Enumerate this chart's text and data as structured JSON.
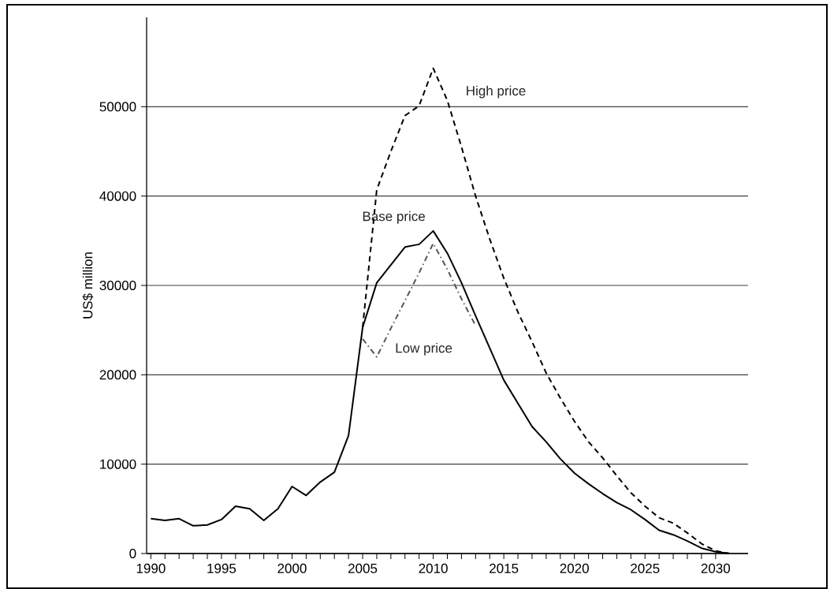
{
  "chart_data": {
    "type": "line",
    "ylabel": "US$ million",
    "xlim": [
      1989.7,
      2032.3
    ],
    "xticks": [
      1990,
      1995,
      2000,
      2005,
      2010,
      2015,
      2020,
      2025,
      2030
    ],
    "ylim": [
      0,
      60000
    ],
    "yticks": [
      0,
      10000,
      20000,
      30000,
      40000,
      50000
    ],
    "grid": "y",
    "legend": false,
    "marker": "none",
    "series": [
      {
        "name": "Base price",
        "color": "#000000",
        "line_style": "solid",
        "x": [
          1990,
          1991,
          1992,
          1993,
          1994,
          1995,
          1996,
          1997,
          1998,
          1999,
          2000,
          2001,
          2002,
          2003,
          2004,
          2005,
          2006,
          2007,
          2008,
          2009,
          2010,
          2011,
          2012,
          2013,
          2014,
          2015,
          2016,
          2017,
          2018,
          2019,
          2020,
          2021,
          2022,
          2023,
          2024,
          2025,
          2026,
          2027,
          2028,
          2029,
          2030,
          2031
        ],
        "values": [
          3900,
          3700,
          3900,
          3100,
          3200,
          3800,
          5300,
          5000,
          3700,
          5000,
          7500,
          6500,
          8000,
          9100,
          13200,
          25300,
          30300,
          32300,
          34300,
          34600,
          36100,
          33600,
          30300,
          26600,
          23000,
          19400,
          16800,
          14200,
          12500,
          10600,
          9000,
          7800,
          6700,
          5700,
          4900,
          3800,
          2600,
          2100,
          1400,
          600,
          200,
          0
        ]
      },
      {
        "name": "High price",
        "color": "#000000",
        "line_style": "dashed",
        "x": [
          2005,
          2006,
          2007,
          2008,
          2009,
          2010,
          2011,
          2012,
          2013,
          2014,
          2015,
          2016,
          2017,
          2018,
          2019,
          2020,
          2021,
          2022,
          2023,
          2024,
          2025,
          2026,
          2027,
          2028,
          2029,
          2030,
          2031
        ],
        "values": [
          25300,
          40700,
          45000,
          49000,
          50100,
          54300,
          50700,
          45500,
          40000,
          35200,
          30800,
          27000,
          23700,
          20200,
          17400,
          14800,
          12500,
          10700,
          8700,
          6800,
          5300,
          4000,
          3400,
          2300,
          1100,
          300,
          0
        ]
      },
      {
        "name": "Low price",
        "color": "#555555",
        "line_style": "dashdot",
        "x": [
          2005,
          2006,
          2007,
          2008,
          2009,
          2010,
          2011,
          2012,
          2013
        ],
        "values": [
          24000,
          22000,
          25200,
          28300,
          31400,
          34700,
          31800,
          28500,
          25500
        ]
      }
    ]
  }
}
